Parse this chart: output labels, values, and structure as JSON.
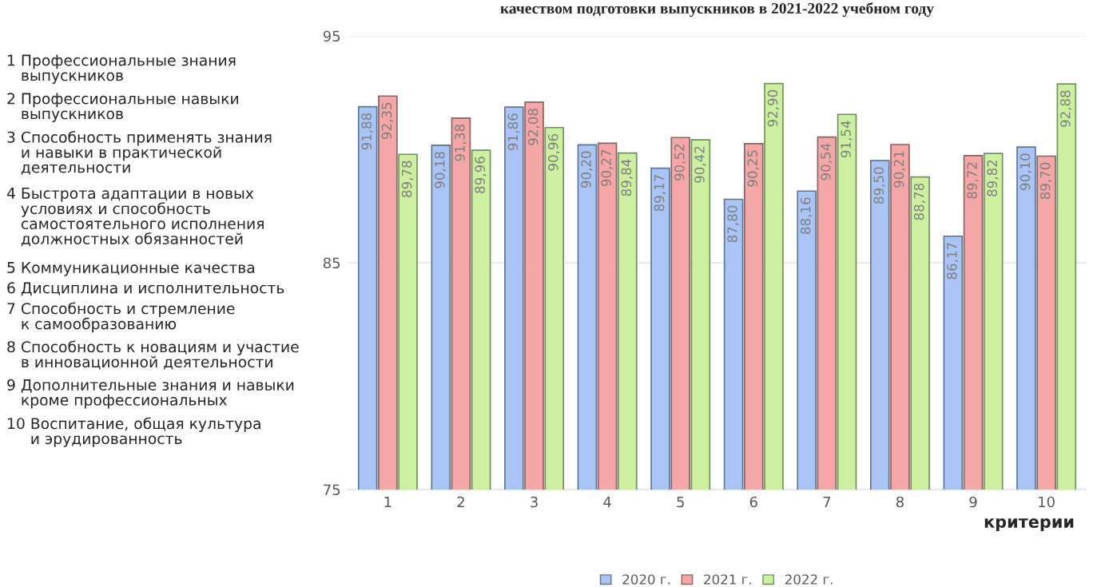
{
  "chart_data": {
    "type": "bar",
    "title": "качеством подготовки выпускников в 2021-2022 учебном году",
    "xlabel": "критерии",
    "categories": [
      "1",
      "2",
      "3",
      "4",
      "5",
      "6",
      "7",
      "8",
      "9",
      "10"
    ],
    "series": [
      {
        "name": "2020 г.",
        "color": "#a9c4f5",
        "values": [
          91.88,
          90.18,
          91.86,
          90.2,
          89.17,
          87.8,
          88.16,
          89.5,
          86.17,
          90.1
        ],
        "value_labels": [
          "91,88",
          "90,18",
          "91,86",
          "90,20",
          "89,17",
          "87,80",
          "88,16",
          "89,50",
          "86,17",
          "90,10"
        ]
      },
      {
        "name": "2021 г.",
        "color": "#f5a6a6",
        "values": [
          92.35,
          91.38,
          92.08,
          90.27,
          90.52,
          90.25,
          90.54,
          90.21,
          89.72,
          89.7
        ],
        "value_labels": [
          "92,35",
          "91,38",
          "92,08",
          "90,27",
          "90,52",
          "90,25",
          "90,54",
          "90,21",
          "89,72",
          "89,70"
        ]
      },
      {
        "name": "2022 г.",
        "color": "#cdf0a0",
        "values": [
          89.78,
          89.96,
          90.96,
          89.84,
          90.42,
          92.9,
          91.54,
          88.78,
          89.82,
          92.88
        ],
        "value_labels": [
          "89,78",
          "89,96",
          "90,96",
          "89,84",
          "90,42",
          "92,90",
          "91,54",
          "88,78",
          "89,82",
          "92,88"
        ]
      }
    ],
    "ylim": [
      75,
      95
    ],
    "yticks": [
      75,
      85,
      95
    ],
    "grid": "y",
    "legend": "bottom",
    "annotations": [
      "1 Профессиональные знания\n   выпускников",
      "2 Профессиональные навыки\n   выпускников",
      "3 Способность применять знания\n   и навыки в практической\n   деятельности",
      "4 Быстрота адаптации в новых\n   условиях и способность\n   самостоятельного исполнения\n   должностных обязанностей",
      "5 Коммуникационные качества",
      "6 Дисциплина и исполнительность",
      "7 Способность и стремление\n   к самообразованию",
      "8 Способность к новациям и участие\n   в инновационной деятельности",
      "9 Дополнительные знания и навыки\n   кроме профессиональных",
      "10 Воспитание, общая культура\n     и эрудированность"
    ]
  }
}
